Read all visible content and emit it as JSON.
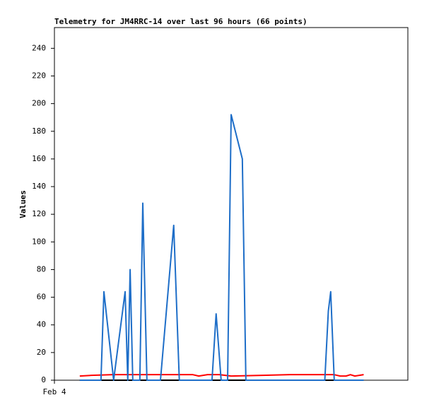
{
  "chart_data": {
    "type": "line",
    "title": "Telemetry for JM4RRC-14 over last 96 hours (66 points)",
    "y_label": "Values",
    "xlim": [
      0,
      120
    ],
    "xticks": [
      {
        "value": 0,
        "label": "Feb 4"
      }
    ],
    "ylim": [
      0,
      255
    ],
    "yticks": [
      0,
      20,
      40,
      60,
      80,
      100,
      120,
      140,
      160,
      180,
      200,
      220,
      240
    ],
    "series": [
      {
        "color": "#000000",
        "x": [
          8.6,
          105
        ],
        "values": [
          0,
          0
        ]
      },
      {
        "color": "#ff0000",
        "x": [
          8.6,
          12.5,
          20,
          40,
          47,
          49,
          52,
          56,
          60,
          80,
          95,
          97,
          99,
          100.5,
          102,
          105
        ],
        "values": [
          3,
          3.5,
          4,
          4,
          4,
          3,
          4,
          4,
          3,
          4,
          4,
          3,
          3,
          4,
          3,
          4
        ]
      },
      {
        "color": "#1e6ec8",
        "x": [
          8.6,
          15.8,
          16.8,
          20.1,
          24.0,
          24.9,
          25.7,
          26.6,
          29.0,
          30.0,
          31.4,
          36.0,
          40.5,
          42.4,
          53.5,
          54.9,
          56.6,
          58.8,
          60.0,
          63.8,
          65.0,
          91.8,
          93.0,
          93.8,
          95.0,
          105
        ],
        "values": [
          0,
          0,
          64,
          0,
          64,
          0,
          80,
          0,
          0,
          128,
          0,
          0,
          112,
          0,
          0,
          48,
          0,
          0,
          192,
          160,
          0,
          0,
          50,
          64,
          0,
          0
        ]
      }
    ]
  }
}
